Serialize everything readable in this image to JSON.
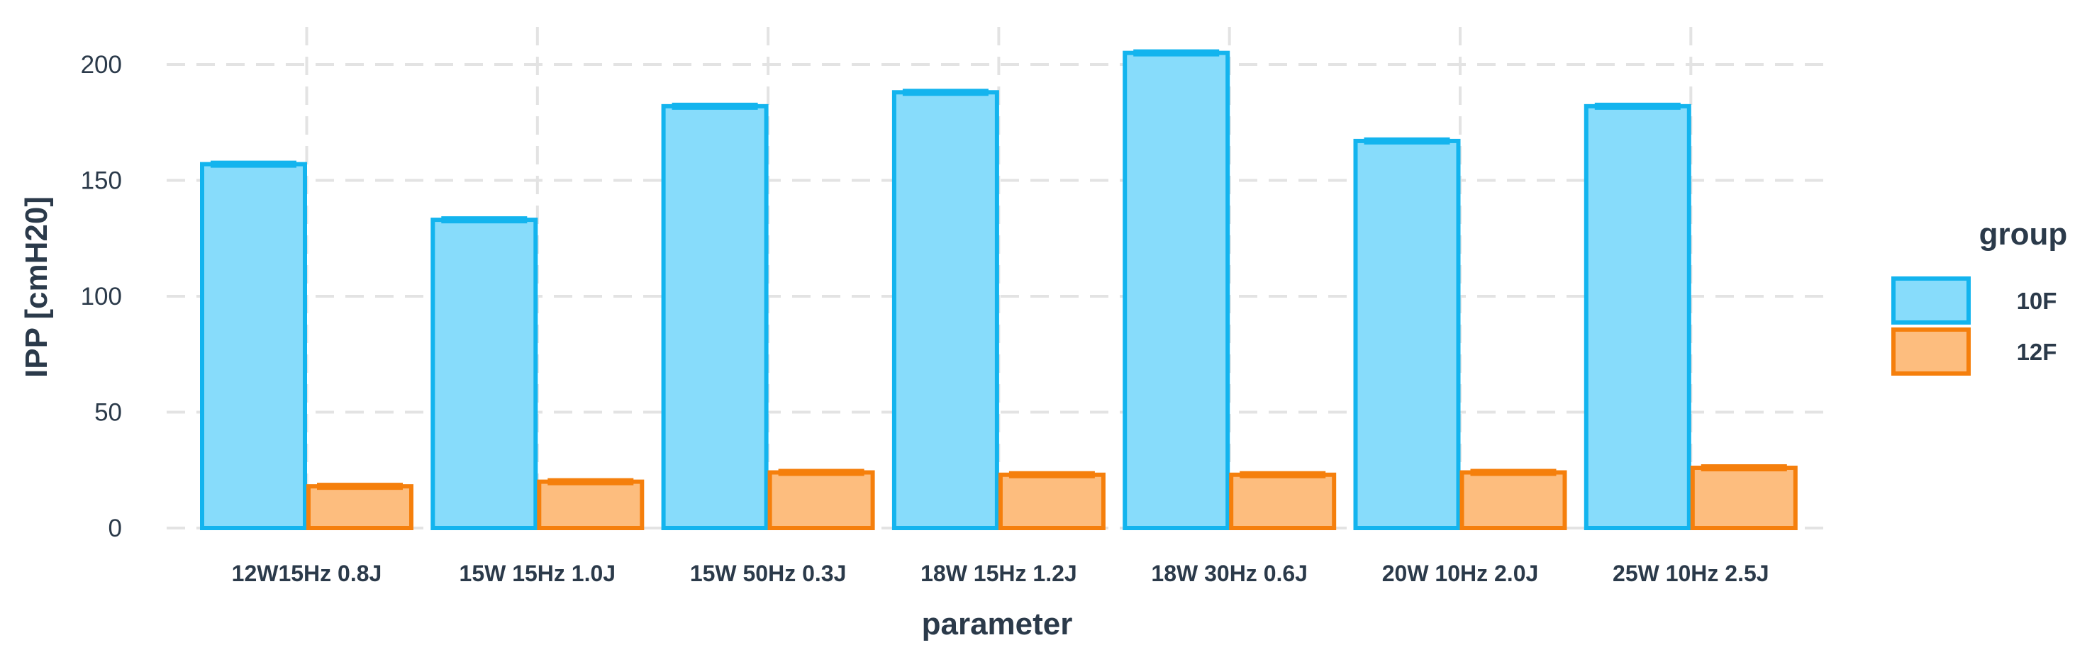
{
  "chart_data": {
    "type": "bar",
    "title": "",
    "xlabel": "parameter",
    "ylabel": "IPP [cmH20]",
    "ylim": [
      0,
      215
    ],
    "yticks": [
      0,
      50,
      100,
      150,
      200
    ],
    "categories": [
      "12W15Hz 0.8J",
      "15W 15Hz 1.0J",
      "15W 50Hz 0.3J",
      "18W 15Hz 1.2J",
      "18W 30Hz 0.6J",
      "20W 10Hz 2.0J",
      "25W 10Hz 2.5J"
    ],
    "series": [
      {
        "name": "10F",
        "values": [
          157,
          133,
          182,
          188,
          205,
          167,
          182
        ]
      },
      {
        "name": "12F",
        "values": [
          18,
          20,
          24,
          23,
          23,
          24,
          26
        ]
      }
    ],
    "legend": {
      "title": "group",
      "position": "right"
    },
    "grid": true,
    "colors": {
      "10F_fill": "#87dcfb",
      "10F_stroke": "#13b4ee",
      "12F_fill": "#fdbd7e",
      "12F_stroke": "#f57f0c",
      "grid": "#e3e3e3",
      "text": "#2b3a4a"
    }
  }
}
